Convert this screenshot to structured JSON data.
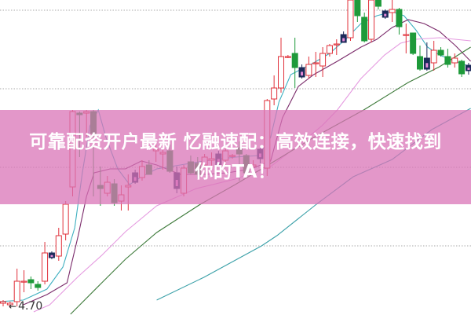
{
  "banner": {
    "line1": "可靠配资开户最新 忆融速配：高效连接，快速找到",
    "line2": "你的TA！"
  },
  "chart_data": {
    "type": "candlestick",
    "title": "",
    "xlabel": "",
    "ylabel": "",
    "ylim": [
      4.65,
      6.66
    ],
    "grid": true,
    "colors": {
      "up": "#e0303a",
      "down": "#1e9a3a",
      "marked": "#1c2a5a",
      "ma5": "#3fb0c0",
      "ma10": "#7a2a6a",
      "ma20": "#e59ae0",
      "ma30": "#3d7a3a",
      "ma60": "#3aa0a8",
      "banner": "#e397c9"
    },
    "low_marker": {
      "label": "4.70",
      "value": 4.7
    },
    "candles_ohlc": [
      [
        4.73,
        4.75,
        4.71,
        4.74
      ],
      [
        4.72,
        4.74,
        4.7,
        4.73
      ],
      [
        4.74,
        4.95,
        4.71,
        4.87
      ],
      [
        4.87,
        4.94,
        4.8,
        4.87
      ],
      [
        4.88,
        4.9,
        4.82,
        4.86
      ],
      [
        4.85,
        4.87,
        4.81,
        4.83
      ],
      [
        4.87,
        5.12,
        4.85,
        5.05
      ],
      [
        5.05,
        5.06,
        5.01,
        5.02
      ],
      [
        5.03,
        5.21,
        5.0,
        5.16
      ],
      [
        5.17,
        5.38,
        5.13,
        5.36
      ],
      [
        5.47,
        5.96,
        5.41,
        5.95
      ],
      [
        5.94,
        5.95,
        5.66,
        5.93
      ],
      [
        5.94,
        5.96,
        5.79,
        5.95
      ],
      [
        5.95,
        5.96,
        5.41,
        5.81
      ],
      [
        5.48,
        5.6,
        5.35,
        5.46
      ],
      [
        5.43,
        5.54,
        5.41,
        5.5
      ],
      [
        5.49,
        5.52,
        5.35,
        5.37
      ],
      [
        5.38,
        5.48,
        5.32,
        5.42
      ],
      [
        5.47,
        5.55,
        5.32,
        5.48
      ],
      [
        5.56,
        5.58,
        5.49,
        5.5
      ],
      [
        5.53,
        5.64,
        5.51,
        5.6
      ],
      [
        5.61,
        5.64,
        5.55,
        5.55
      ],
      [
        5.7,
        5.74,
        5.63,
        5.71
      ],
      [
        5.68,
        5.74,
        5.58,
        5.69
      ],
      [
        5.7,
        5.74,
        5.56,
        5.57
      ],
      [
        5.56,
        5.6,
        5.43,
        5.46
      ],
      [
        5.43,
        5.61,
        5.41,
        5.59
      ],
      [
        5.63,
        5.67,
        5.55,
        5.56
      ],
      [
        5.62,
        5.66,
        5.52,
        5.55
      ],
      [
        5.61,
        5.68,
        5.59,
        5.66
      ],
      [
        5.64,
        5.69,
        5.6,
        5.65
      ],
      [
        5.68,
        5.7,
        5.6,
        5.61
      ],
      [
        5.64,
        5.72,
        5.61,
        5.7
      ],
      [
        5.67,
        5.68,
        5.65,
        5.67
      ],
      [
        5.72,
        5.76,
        5.51,
        5.68
      ],
      [
        5.67,
        5.68,
        5.55,
        5.56
      ],
      [
        5.6,
        5.64,
        5.57,
        5.61
      ],
      [
        5.71,
        5.72,
        5.62,
        5.65
      ],
      [
        5.59,
        6.03,
        5.54,
        6.02
      ],
      [
        6.03,
        6.18,
        5.99,
        6.1
      ],
      [
        6.1,
        6.42,
        6.07,
        6.3
      ],
      [
        6.3,
        6.31,
        6.29,
        6.3
      ],
      [
        6.32,
        6.42,
        6.1,
        6.23
      ],
      [
        6.23,
        6.25,
        6.16,
        6.17
      ],
      [
        6.18,
        6.3,
        6.16,
        6.25
      ],
      [
        6.26,
        6.33,
        6.17,
        6.26
      ],
      [
        6.24,
        6.36,
        6.17,
        6.32
      ],
      [
        6.32,
        6.38,
        6.3,
        6.37
      ],
      [
        6.38,
        6.41,
        6.31,
        6.38
      ],
      [
        6.44,
        6.46,
        6.39,
        6.39
      ],
      [
        6.42,
        6.66,
        6.4,
        6.66
      ],
      [
        6.66,
        6.66,
        6.52,
        6.56
      ],
      [
        6.55,
        6.58,
        6.39,
        6.4
      ],
      [
        6.41,
        6.66,
        6.39,
        6.66
      ],
      [
        6.66,
        6.66,
        6.6,
        6.62
      ],
      [
        6.59,
        6.6,
        6.54,
        6.55
      ],
      [
        6.58,
        6.66,
        6.52,
        6.6
      ],
      [
        6.6,
        6.61,
        6.44,
        6.49
      ],
      [
        6.44,
        6.51,
        6.32,
        6.44
      ],
      [
        6.45,
        6.45,
        6.31,
        6.32
      ],
      [
        6.3,
        6.37,
        6.21,
        6.22
      ],
      [
        6.22,
        6.39,
        6.21,
        6.29
      ],
      [
        6.26,
        6.4,
        6.21,
        6.34
      ],
      [
        6.34,
        6.36,
        6.3,
        6.31
      ],
      [
        6.3,
        6.35,
        6.23,
        6.25
      ],
      [
        6.26,
        6.32,
        6.23,
        6.29
      ],
      [
        6.27,
        6.28,
        6.17,
        6.19
      ],
      [
        6.245,
        6.26,
        6.185,
        6.21
      ]
    ],
    "marked_candles": [
      7,
      19,
      25,
      31,
      37,
      43,
      49,
      55,
      61,
      67
    ],
    "moving_averages": [
      {
        "key": "ma5",
        "points": [
          [
            -0.5,
            4.74
          ],
          [
            2.9,
            4.75
          ],
          [
            6.3,
            4.82
          ],
          [
            8.6,
            4.96
          ],
          [
            10.3,
            5.21
          ],
          [
            11.4,
            5.56
          ],
          [
            12.5,
            5.86
          ],
          [
            13.7,
            5.96
          ],
          [
            14.8,
            5.785
          ],
          [
            16.5,
            5.585
          ],
          [
            18.2,
            5.485
          ],
          [
            19.9,
            5.535
          ],
          [
            22.1,
            5.585
          ],
          [
            25.5,
            5.61
          ],
          [
            28.9,
            5.635
          ],
          [
            33.4,
            5.66
          ],
          [
            36.8,
            5.67
          ],
          [
            38.5,
            5.785
          ],
          [
            39.7,
            6.01
          ],
          [
            41.4,
            6.185
          ],
          [
            42.5,
            6.21
          ],
          [
            44.7,
            6.26
          ],
          [
            47,
            6.32
          ],
          [
            49.3,
            6.41
          ],
          [
            51.5,
            6.51
          ],
          [
            53.8,
            6.56
          ],
          [
            56,
            6.585
          ],
          [
            57.7,
            6.56
          ],
          [
            59.4,
            6.47
          ],
          [
            61.1,
            6.36
          ],
          [
            62.8,
            6.31
          ],
          [
            65.1,
            6.27
          ],
          [
            67.3,
            6.235
          ]
        ]
      },
      {
        "key": "ma10",
        "points": [
          [
            2.9,
            4.72
          ],
          [
            6.3,
            4.785
          ],
          [
            9.2,
            4.86
          ],
          [
            10.8,
            5.16
          ],
          [
            12,
            5.41
          ],
          [
            13.1,
            5.56
          ],
          [
            15.4,
            5.585
          ],
          [
            17.6,
            5.585
          ],
          [
            19.9,
            5.635
          ],
          [
            22.1,
            5.61
          ],
          [
            25.5,
            5.55
          ],
          [
            28.9,
            5.55
          ],
          [
            32.3,
            5.56
          ],
          [
            35.7,
            5.585
          ],
          [
            38.5,
            5.635
          ],
          [
            40.2,
            5.91
          ],
          [
            42.5,
            6.11
          ],
          [
            44.7,
            6.185
          ],
          [
            48.1,
            6.27
          ],
          [
            51.5,
            6.36
          ],
          [
            53.8,
            6.41
          ],
          [
            56,
            6.485
          ],
          [
            58.3,
            6.535
          ],
          [
            60.6,
            6.51
          ],
          [
            62.8,
            6.46
          ],
          [
            65.1,
            6.37
          ],
          [
            67.3,
            6.27
          ]
        ]
      },
      {
        "key": "ma20",
        "points": [
          [
            4.4,
            4.675
          ],
          [
            6.7,
            4.72
          ],
          [
            10.8,
            4.9
          ],
          [
            14.2,
            5.035
          ],
          [
            17.6,
            5.185
          ],
          [
            22.1,
            5.35
          ],
          [
            27.8,
            5.46
          ],
          [
            33.4,
            5.52
          ],
          [
            38.5,
            5.6
          ],
          [
            42.5,
            5.735
          ],
          [
            45.9,
            5.86
          ],
          [
            48.1,
            5.96
          ],
          [
            51.5,
            6.16
          ],
          [
            54.9,
            6.31
          ],
          [
            57.2,
            6.385
          ],
          [
            59.4,
            6.41
          ],
          [
            62.8,
            6.42
          ],
          [
            67.3,
            6.4
          ]
        ]
      },
      {
        "key": "ma30",
        "points": [
          [
            9.7,
            4.66
          ],
          [
            14.2,
            4.86
          ],
          [
            17.6,
            5.01
          ],
          [
            22.1,
            5.18
          ],
          [
            28.4,
            5.36
          ],
          [
            33.4,
            5.485
          ],
          [
            39.1,
            5.635
          ],
          [
            44.7,
            5.785
          ],
          [
            51.9,
            5.96
          ],
          [
            58.3,
            6.135
          ],
          [
            62.8,
            6.235
          ],
          [
            67.3,
            6.36
          ]
        ]
      },
      {
        "key": "ma60",
        "points": [
          [
            22.1,
            4.75
          ],
          [
            28.9,
            4.895
          ],
          [
            37.2,
            5.095
          ],
          [
            39.4,
            5.16
          ],
          [
            45.1,
            5.36
          ],
          [
            50.4,
            5.535
          ],
          [
            56,
            5.645
          ],
          [
            61.7,
            5.835
          ],
          [
            67.3,
            5.97
          ]
        ]
      }
    ]
  }
}
